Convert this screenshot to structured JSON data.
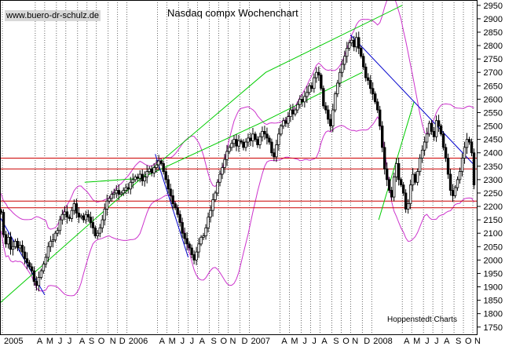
{
  "header": {
    "website": "www.buero-dr-schulz.de",
    "title": "Nasdaq compx Wochenchart",
    "source": "Hoppenstedt Charts"
  },
  "colors": {
    "candles": "#000000",
    "bollinger": "#cc33cc",
    "support_resistance": "#cc0000",
    "uptrend": "#00cc00",
    "downtrend": "#0000cc",
    "grid": "#000000"
  },
  "chart_data": {
    "type": "candlestick",
    "title": "Nasdaq compx Wochenchart",
    "ylim": [
      1720,
      2970
    ],
    "y_ticks": [
      1750,
      1800,
      1850,
      1900,
      1950,
      2000,
      2050,
      2100,
      2150,
      2200,
      2250,
      2300,
      2350,
      2400,
      2450,
      2500,
      2550,
      2600,
      2650,
      2700,
      2750,
      2800,
      2850,
      2900,
      2950
    ],
    "x_ticks": [
      {
        "label": "2005",
        "w": 1
      },
      {
        "label": "A",
        "w": 15
      },
      {
        "label": "M",
        "w": 19
      },
      {
        "label": "J",
        "w": 24
      },
      {
        "label": "J",
        "w": 28
      },
      {
        "label": "A",
        "w": 33
      },
      {
        "label": "S",
        "w": 37
      },
      {
        "label": "O",
        "w": 41
      },
      {
        "label": "N",
        "w": 46
      },
      {
        "label": "D",
        "w": 50
      },
      {
        "label": "2006",
        "w": 54
      },
      {
        "label": "A",
        "w": 67
      },
      {
        "label": "M",
        "w": 71
      },
      {
        "label": "J",
        "w": 76
      },
      {
        "label": "J",
        "w": 80
      },
      {
        "label": "A",
        "w": 84
      },
      {
        "label": "S",
        "w": 89
      },
      {
        "label": "O",
        "w": 93
      },
      {
        "label": "N",
        "w": 97
      },
      {
        "label": "D",
        "w": 102
      },
      {
        "label": "2007",
        "w": 106
      },
      {
        "label": "A",
        "w": 119
      },
      {
        "label": "M",
        "w": 123
      },
      {
        "label": "J",
        "w": 128
      },
      {
        "label": "J",
        "w": 132
      },
      {
        "label": "A",
        "w": 136
      },
      {
        "label": "S",
        "w": 141
      },
      {
        "label": "O",
        "w": 145
      },
      {
        "label": "N",
        "w": 149
      },
      {
        "label": "D",
        "w": 154
      },
      {
        "label": "2008",
        "w": 158
      },
      {
        "label": "A",
        "w": 171
      },
      {
        "label": "M",
        "w": 175
      },
      {
        "label": "J",
        "w": 180
      },
      {
        "label": "J",
        "w": 184
      },
      {
        "label": "A",
        "w": 188
      },
      {
        "label": "S",
        "w": 193
      },
      {
        "label": "O",
        "w": 197
      },
      {
        "label": "N",
        "w": 201
      }
    ],
    "weeks": 203,
    "close": [
      2178,
      2095,
      2060,
      2085,
      2040,
      2050,
      2070,
      2045,
      2055,
      2030,
      2005,
      1990,
      1975,
      1960,
      1920,
      1905,
      1935,
      1960,
      1985,
      2010,
      2050,
      2070,
      2075,
      2100,
      2110,
      2150,
      2170,
      2180,
      2160,
      2155,
      2185,
      2210,
      2175,
      2160,
      2165,
      2150,
      2170,
      2160,
      2140,
      2120,
      2090,
      2100,
      2120,
      2150,
      2190,
      2220,
      2230,
      2245,
      2250,
      2260,
      2245,
      2250,
      2260,
      2270,
      2265,
      2290,
      2300,
      2310,
      2305,
      2320,
      2295,
      2310,
      2330,
      2340,
      2325,
      2345,
      2355,
      2370,
      2360,
      2330,
      2300,
      2265,
      2240,
      2210,
      2195,
      2170,
      2140,
      2100,
      2080,
      2060,
      2045,
      2020,
      2000,
      2030,
      2060,
      2085,
      2090,
      2120,
      2160,
      2185,
      2225,
      2250,
      2290,
      2320,
      2345,
      2375,
      2405,
      2420,
      2435,
      2450,
      2425,
      2445,
      2440,
      2420,
      2440,
      2455,
      2445,
      2470,
      2450,
      2430,
      2460,
      2480,
      2470,
      2455,
      2440,
      2400,
      2385,
      2430,
      2470,
      2500,
      2520,
      2510,
      2535,
      2560,
      2545,
      2560,
      2580,
      2600,
      2590,
      2610,
      2625,
      2650,
      2640,
      2680,
      2700,
      2690,
      2640,
      2575,
      2560,
      2525,
      2500,
      2560,
      2620,
      2660,
      2700,
      2730,
      2760,
      2790,
      2810,
      2820,
      2795,
      2830,
      2790,
      2760,
      2720,
      2680,
      2670,
      2640,
      2620,
      2590,
      2560,
      2500,
      2420,
      2340,
      2300,
      2260,
      2235,
      2310,
      2360,
      2300,
      2280,
      2250,
      2190,
      2210,
      2280,
      2320,
      2290,
      2330,
      2380,
      2410,
      2440,
      2470,
      2510,
      2480,
      2460,
      2520,
      2500,
      2470,
      2420,
      2380,
      2320,
      2260,
      2240,
      2270,
      2300,
      2330,
      2380,
      2420,
      2450,
      2440,
      2400,
      2280
    ]
  },
  "overlays": {
    "support_lines": [
      2380,
      2340,
      2220,
      2195
    ],
    "uptrend_base": [
      [
        0,
        1840
      ],
      [
        60,
        2305
      ],
      [
        113,
        2520
      ],
      [
        154,
        2700
      ]
    ],
    "uptrend_top": [
      [
        36,
        2290
      ],
      [
        60,
        2305
      ],
      [
        113,
        2700
      ],
      [
        171,
        2950
      ]
    ],
    "uptrend_2008": [
      [
        161,
        2150
      ],
      [
        176,
        2590
      ]
    ],
    "downtrend_2005": [
      [
        0,
        2160
      ],
      [
        19,
        1870
      ]
    ],
    "downtrend_2006": [
      [
        66,
        2395
      ],
      [
        80,
        2010
      ]
    ],
    "downtrend_2007": [
      [
        149,
        2840
      ],
      [
        201,
        2360
      ]
    ]
  }
}
